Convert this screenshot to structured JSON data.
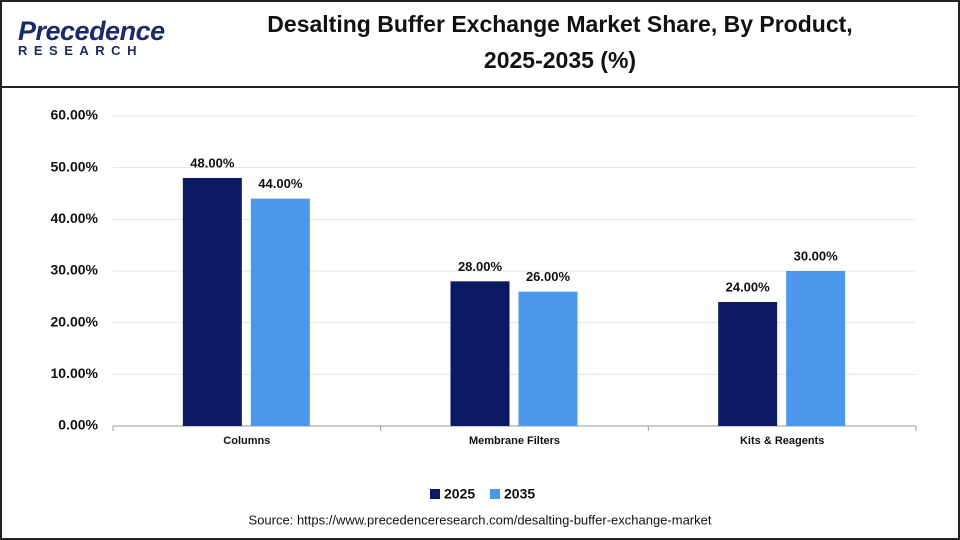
{
  "brand": {
    "name": "Precedence",
    "sub": "RESEARCH"
  },
  "source": "Source: https://www.precedenceresearch.com/desalting-buffer-exchange-market",
  "chart_data": {
    "type": "bar",
    "title": "Desalting Buffer Exchange Market Share, By Product, 2025-2035 (%)",
    "categories": [
      "Columns",
      "Membrane Filters",
      "Kits & Reagents"
    ],
    "series": [
      {
        "name": "2025",
        "color": "#0d1a63",
        "values": [
          48,
          28,
          24
        ],
        "value_labels": [
          "48.00%",
          "28.00%",
          "24.00%"
        ]
      },
      {
        "name": "2035",
        "color": "#4a97ec",
        "values": [
          44,
          26,
          30
        ],
        "value_labels": [
          "44.00%",
          "26.00%",
          "30.00%"
        ]
      }
    ],
    "ylim": [
      0,
      60
    ],
    "yticks": [
      {
        "value": 0,
        "label": "0.00%"
      },
      {
        "value": 10,
        "label": "10.00%"
      },
      {
        "value": 20,
        "label": "20.00%"
      },
      {
        "value": 30,
        "label": "30.00%"
      },
      {
        "value": 40,
        "label": "40.00%"
      },
      {
        "value": 50,
        "label": "50.00%"
      },
      {
        "value": 60,
        "label": "60.00%"
      }
    ],
    "grid": true,
    "legend": "bottom"
  }
}
